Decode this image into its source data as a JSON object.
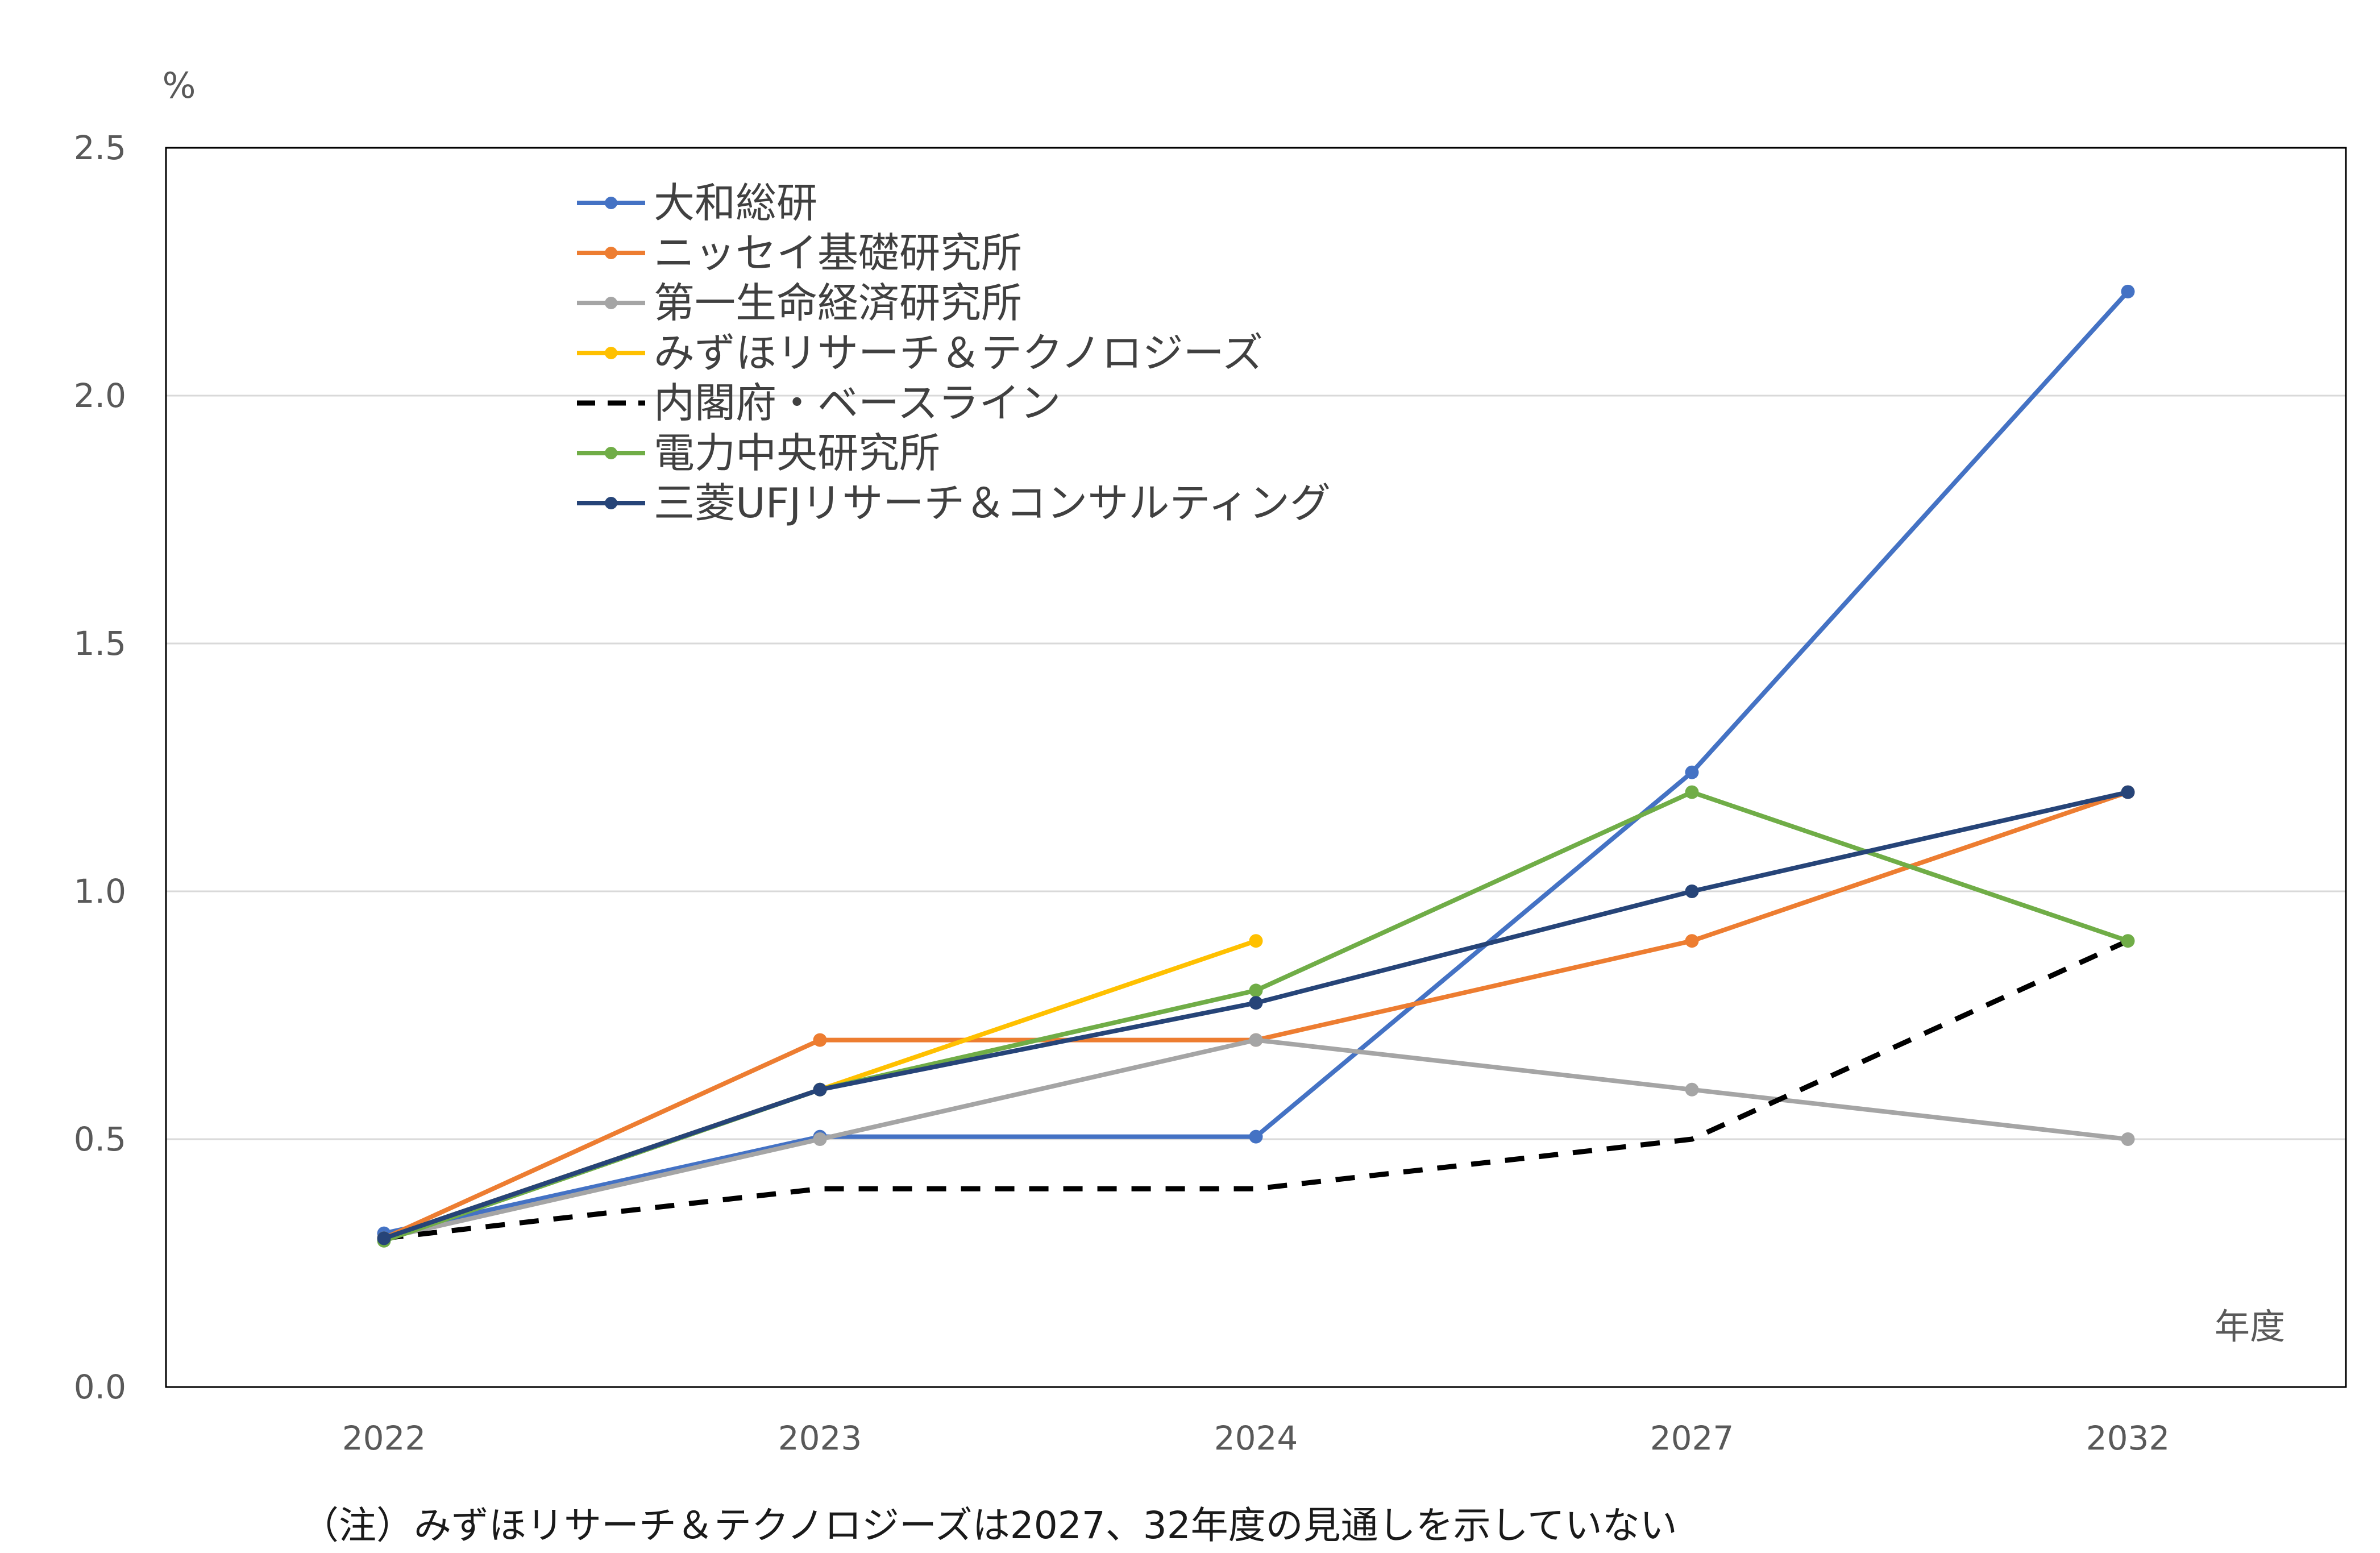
{
  "chart_data": {
    "type": "line",
    "categories": [
      "2022",
      "2023",
      "2024",
      "2027",
      "2032"
    ],
    "ylim": [
      0,
      2.5
    ],
    "yticks": [
      "0.0",
      "0.5",
      "1.0",
      "1.5",
      "2.0",
      "2.5"
    ],
    "y_unit": "%",
    "x_unit": "年度",
    "grid": true,
    "legend_position": "top-left inside plot",
    "series": [
      {
        "name": "大和総研",
        "color": "#4472C4",
        "dash": false,
        "values": [
          0.31,
          0.505,
          0.505,
          1.24,
          2.21
        ]
      },
      {
        "name": "ニッセイ基礎研究所",
        "color": "#ED7D31",
        "dash": false,
        "values": [
          0.3,
          0.7,
          0.7,
          0.9,
          1.2
        ]
      },
      {
        "name": "第一生命経済研究所",
        "color": "#A5A5A5",
        "dash": false,
        "values": [
          0.3,
          0.5,
          0.7,
          0.6,
          0.5
        ]
      },
      {
        "name": "みずほリサーチ＆テクノロジーズ",
        "color": "#FFC000",
        "dash": false,
        "values": [
          0.3,
          0.6,
          0.9,
          null,
          null
        ]
      },
      {
        "name": "内閣府・ベースライン",
        "color": "#000000",
        "dash": true,
        "values": [
          0.3,
          0.4,
          0.4,
          0.5,
          0.9
        ]
      },
      {
        "name": "電力中央研究所",
        "color": "#70AD47",
        "dash": false,
        "values": [
          0.295,
          0.6,
          0.8,
          1.2,
          0.9
        ]
      },
      {
        "name": "三菱UFJリサーチ＆コンサルティング",
        "color": "#264478",
        "dash": false,
        "values": [
          0.3,
          0.6,
          0.775,
          1.0,
          1.2
        ]
      }
    ]
  },
  "note": "（注）みずほリサーチ＆テクノロジーズは2027、32年度の見通しを示していない"
}
